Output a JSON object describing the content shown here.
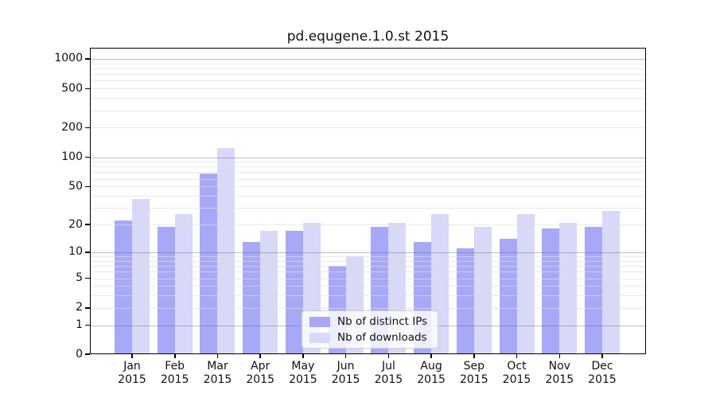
{
  "title": "pd.equgene.1.0.st 2015",
  "year": "2015",
  "months": [
    "Jan",
    "Feb",
    "Mar",
    "Apr",
    "May",
    "Jun",
    "Jul",
    "Aug",
    "Sep",
    "Oct",
    "Nov",
    "Dec"
  ],
  "legend": {
    "items": [
      {
        "label": "Nb of distinct IPs",
        "color": "#a8a8f8"
      },
      {
        "label": "Nb of downloads",
        "color": "#d8d8f8"
      }
    ]
  },
  "y_axis": {
    "tick_labels": [
      "1000",
      "500",
      "200",
      "100",
      "50",
      "20",
      "10",
      "5",
      "2",
      "1",
      "0"
    ]
  },
  "chart_data": {
    "type": "bar",
    "title": "pd.equgene.1.0.st 2015",
    "categories": [
      "Jan 2015",
      "Feb 2015",
      "Mar 2015",
      "Apr 2015",
      "May 2015",
      "Jun 2015",
      "Jul 2015",
      "Aug 2015",
      "Sep 2015",
      "Oct 2015",
      "Nov 2015",
      "Dec 2015"
    ],
    "series": [
      {
        "name": "Nb of distinct IPs",
        "color": "#a8a8f8",
        "values": [
          22,
          19,
          68,
          13,
          17,
          7,
          19,
          13,
          11,
          14,
          18,
          19
        ]
      },
      {
        "name": "Nb of downloads",
        "color": "#d8d8f8",
        "values": [
          37,
          26,
          125,
          17,
          21,
          9,
          21,
          26,
          19,
          26,
          21,
          28
        ]
      }
    ],
    "yscale": "log10(1+y)",
    "ylim": [
      0,
      1300
    ],
    "y_ticks": [
      1000,
      500,
      200,
      100,
      50,
      20,
      10,
      5,
      2,
      1,
      0
    ],
    "grid": true,
    "grid_major": [
      1,
      10,
      100,
      1000
    ],
    "grid_minor": [
      2,
      3,
      4,
      5,
      6,
      7,
      8,
      9,
      20,
      30,
      40,
      50,
      60,
      70,
      80,
      90,
      200,
      300,
      400,
      500,
      600,
      700,
      800,
      900
    ],
    "xlabel": "",
    "ylabel": "",
    "legend_position": "lower center"
  }
}
